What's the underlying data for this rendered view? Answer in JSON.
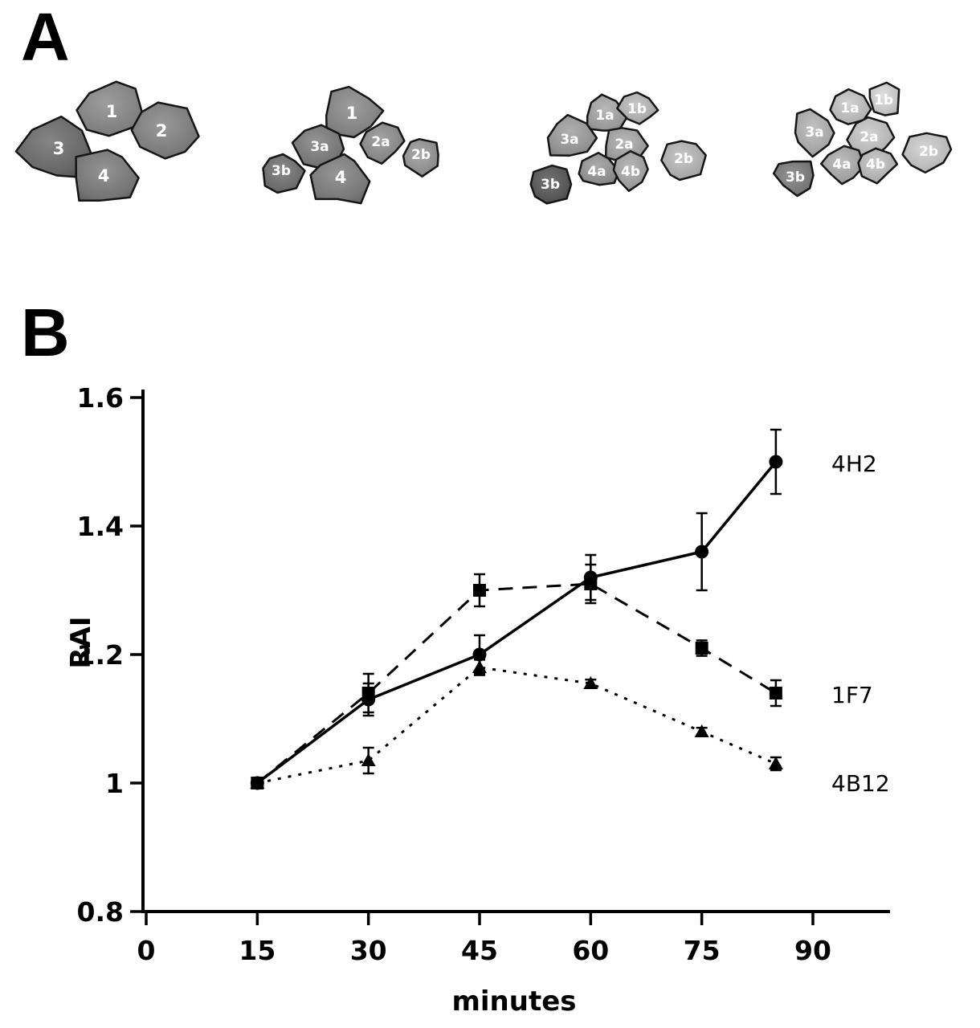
{
  "figure": {
    "panel_a_label": "A",
    "panel_b_label": "B"
  },
  "panel_a": {
    "description_visible_labels_only": true,
    "images": [
      {
        "cells": [
          "1",
          "2",
          "3",
          "4"
        ]
      },
      {
        "cells": [
          "1",
          "3a",
          "3b",
          "4",
          "2a",
          "2b"
        ]
      },
      {
        "cells": [
          "1a",
          "1b",
          "3a",
          "2a",
          "4a",
          "4b",
          "2b",
          "3b"
        ]
      },
      {
        "cells": [
          "1a",
          "1b",
          "3a",
          "2a",
          "4a",
          "4b",
          "2b",
          "3b"
        ]
      }
    ]
  },
  "chart_data": {
    "type": "line",
    "title": "",
    "xlabel": "minutes",
    "ylabel": "RAI",
    "x": [
      15,
      30,
      45,
      60,
      75,
      85
    ],
    "x_ticks": [
      0,
      15,
      30,
      45,
      60,
      75,
      90
    ],
    "y_ticks": [
      0.8,
      1,
      1.2,
      1.4,
      1.6
    ],
    "xlim": [
      0,
      98
    ],
    "ylim": [
      0.8,
      1.6
    ],
    "grid": false,
    "legend_position": "right-of-last-point",
    "color": "#000000",
    "series": [
      {
        "name": "4H2",
        "marker": "circle",
        "line": "solid",
        "values": [
          1.0,
          1.13,
          1.2,
          1.32,
          1.36,
          1.5
        ],
        "errors": [
          0,
          0.025,
          0.03,
          0.035,
          0.06,
          0.05
        ]
      },
      {
        "name": "1F7",
        "marker": "square",
        "line": "dashed",
        "values": [
          1.0,
          1.14,
          1.3,
          1.31,
          1.21,
          1.14
        ],
        "errors": [
          0,
          0.03,
          0.025,
          0.03,
          0.012,
          0.02
        ]
      },
      {
        "name": "4B12",
        "marker": "triangle",
        "line": "dotted",
        "values": [
          1.0,
          1.035,
          1.18,
          1.155,
          1.08,
          1.03
        ],
        "errors": [
          0,
          0.02,
          0.012,
          0.006,
          0.006,
          0.01
        ]
      }
    ]
  }
}
